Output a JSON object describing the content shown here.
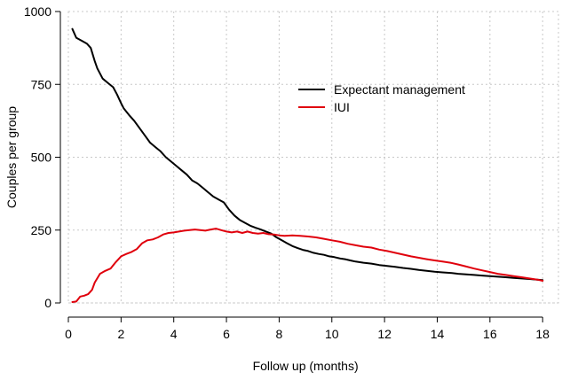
{
  "chart_data": {
    "type": "line",
    "title": "",
    "xlabel": "Follow up (months)",
    "ylabel": "Couples per group",
    "xlim": [
      0,
      18.6
    ],
    "ylim": [
      0,
      1000
    ],
    "x_ticks": [
      0,
      2,
      4,
      6,
      8,
      10,
      12,
      14,
      16,
      18
    ],
    "y_ticks": [
      0,
      250,
      500,
      750,
      1000
    ],
    "grid": true,
    "legend_position": "upper-right",
    "series": [
      {
        "name": "Expectant management",
        "color": "#000000",
        "x": [
          0.15,
          0.3,
          0.5,
          0.7,
          0.85,
          1.0,
          1.1,
          1.3,
          1.5,
          1.7,
          1.85,
          2.0,
          2.1,
          2.3,
          2.5,
          2.7,
          2.9,
          3.1,
          3.3,
          3.5,
          3.7,
          3.9,
          4.1,
          4.3,
          4.5,
          4.7,
          4.9,
          5.1,
          5.3,
          5.5,
          5.7,
          5.9,
          6.1,
          6.3,
          6.5,
          6.7,
          6.9,
          7.1,
          7.3,
          7.5,
          7.7,
          7.9,
          8.1,
          8.3,
          8.5,
          8.7,
          8.9,
          9.1,
          9.3,
          9.5,
          9.7,
          9.9,
          10.1,
          10.3,
          10.5,
          10.7,
          10.9,
          11.2,
          11.5,
          11.8,
          12.1,
          12.4,
          12.7,
          13.0,
          13.3,
          13.6,
          13.9,
          14.2,
          14.5,
          14.8,
          15.1,
          15.4,
          15.7,
          16.0,
          16.3,
          16.6,
          16.9,
          17.2,
          17.5,
          17.8,
          18.0
        ],
        "y": [
          940,
          910,
          900,
          890,
          875,
          830,
          805,
          770,
          755,
          740,
          715,
          685,
          668,
          645,
          625,
          600,
          575,
          550,
          535,
          520,
          500,
          485,
          470,
          455,
          440,
          420,
          410,
          395,
          380,
          365,
          355,
          345,
          320,
          300,
          285,
          275,
          265,
          258,
          252,
          245,
          238,
          225,
          215,
          205,
          195,
          188,
          182,
          178,
          172,
          168,
          165,
          160,
          157,
          153,
          150,
          146,
          142,
          138,
          135,
          130,
          127,
          124,
          120,
          117,
          113,
          110,
          107,
          105,
          103,
          100,
          98,
          96,
          94,
          92,
          90,
          88,
          86,
          84,
          82,
          80,
          78
        ]
      },
      {
        "name": "IUI",
        "color": "#e0000c",
        "x": [
          0.15,
          0.3,
          0.45,
          0.6,
          0.75,
          0.9,
          1.0,
          1.2,
          1.4,
          1.6,
          1.8,
          2.0,
          2.2,
          2.4,
          2.6,
          2.8,
          3.0,
          3.2,
          3.4,
          3.6,
          3.8,
          4.0,
          4.2,
          4.4,
          4.6,
          4.8,
          5.0,
          5.2,
          5.4,
          5.6,
          5.8,
          6.0,
          6.2,
          6.4,
          6.6,
          6.8,
          7.0,
          7.2,
          7.4,
          7.6,
          7.8,
          8.0,
          8.2,
          8.5,
          8.8,
          9.1,
          9.4,
          9.7,
          10.0,
          10.3,
          10.6,
          10.9,
          11.2,
          11.5,
          11.8,
          12.1,
          12.4,
          12.7,
          13.0,
          13.3,
          13.6,
          13.9,
          14.2,
          14.5,
          14.8,
          15.1,
          15.4,
          15.7,
          16.0,
          16.3,
          16.6,
          16.9,
          17.2,
          17.5,
          17.8,
          18.0
        ],
        "y": [
          3,
          5,
          22,
          25,
          30,
          45,
          70,
          100,
          110,
          118,
          140,
          160,
          168,
          175,
          185,
          205,
          215,
          218,
          225,
          235,
          240,
          242,
          245,
          248,
          250,
          252,
          250,
          248,
          252,
          255,
          250,
          245,
          242,
          245,
          240,
          245,
          240,
          238,
          240,
          236,
          235,
          232,
          230,
          232,
          230,
          228,
          225,
          220,
          215,
          210,
          203,
          198,
          193,
          190,
          183,
          178,
          172,
          166,
          160,
          155,
          150,
          146,
          142,
          138,
          132,
          125,
          118,
          112,
          106,
          100,
          96,
          92,
          88,
          84,
          80,
          76
        ]
      }
    ]
  }
}
